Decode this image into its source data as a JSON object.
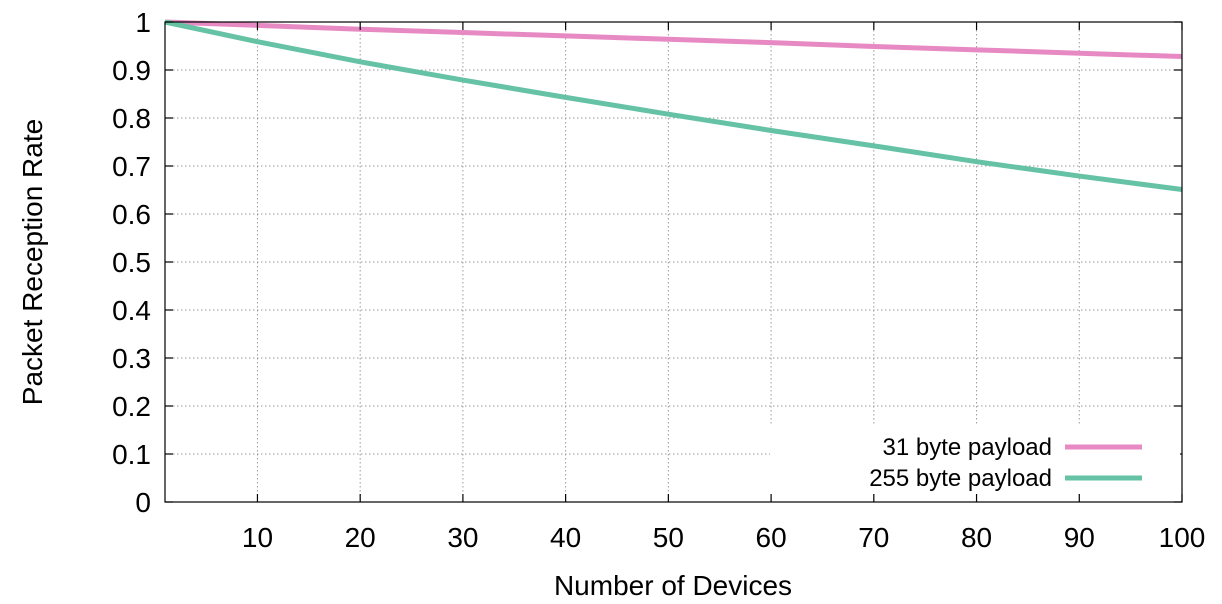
{
  "chart_data": {
    "type": "line",
    "title": "",
    "xlabel": "Number of Devices",
    "ylabel": "Packet Reception Rate",
    "xlim": [
      1,
      100
    ],
    "ylim": [
      0,
      1
    ],
    "xticks": [
      10,
      20,
      30,
      40,
      50,
      60,
      70,
      80,
      90,
      100
    ],
    "yticks": [
      0,
      0.1,
      0.2,
      0.3,
      0.4,
      0.5,
      0.6,
      0.7,
      0.8,
      0.9,
      1
    ],
    "ytick_labels": [
      "0",
      "0.1",
      "0.2",
      "0.3",
      "0.4",
      "0.5",
      "0.6",
      "0.7",
      "0.8",
      "0.9",
      "1"
    ],
    "grid": true,
    "legend_position": "bottom-right",
    "series": [
      {
        "name": "31 byte payload",
        "color": "#e78ac3",
        "x": [
          1,
          10,
          20,
          30,
          40,
          50,
          60,
          70,
          80,
          90,
          100
        ],
        "y": [
          1.0,
          0.993,
          0.985,
          0.978,
          0.971,
          0.964,
          0.957,
          0.949,
          0.942,
          0.935,
          0.928
        ]
      },
      {
        "name": "255 byte payload",
        "color": "#66c2a5",
        "x": [
          1,
          10,
          20,
          30,
          40,
          50,
          60,
          70,
          80,
          90,
          100
        ],
        "y": [
          1.0,
          0.959,
          0.917,
          0.879,
          0.843,
          0.808,
          0.774,
          0.742,
          0.709,
          0.679,
          0.651
        ]
      }
    ]
  }
}
